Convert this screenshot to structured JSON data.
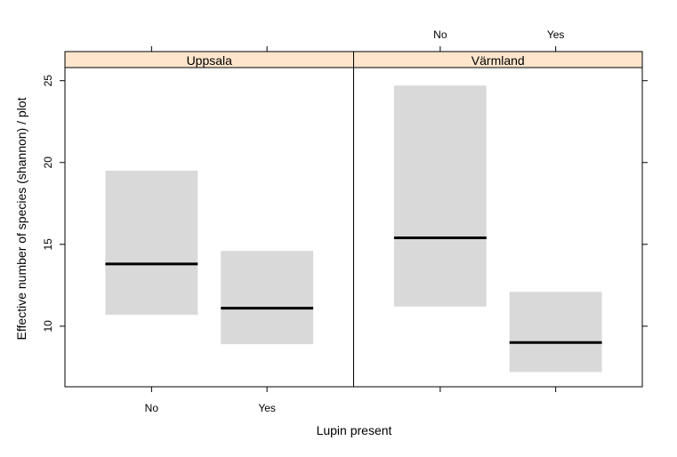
{
  "chart_data": {
    "type": "bar",
    "xlabel": "Lupin present",
    "ylabel": "Effective number of species (shannon) / plot",
    "categories": [
      "No",
      "Yes"
    ],
    "ylim": [
      6.3,
      25.8
    ],
    "yticks": [
      10,
      15,
      20,
      25
    ],
    "panels": [
      {
        "name": "Uppsala",
        "estimates": [
          {
            "x": "No",
            "mean": 13.8,
            "lower": 10.7,
            "upper": 19.5
          },
          {
            "x": "Yes",
            "mean": 11.1,
            "lower": 8.9,
            "upper": 14.6
          }
        ]
      },
      {
        "name": "Värmland",
        "estimates": [
          {
            "x": "No",
            "mean": 15.4,
            "lower": 11.2,
            "upper": 24.7
          },
          {
            "x": "Yes",
            "mean": 9.0,
            "lower": 7.2,
            "upper": 12.1
          }
        ]
      }
    ],
    "strip_color": "#FFE5CC",
    "band_color": "#D9D9D9",
    "line_color": "#000000",
    "grid": false
  }
}
